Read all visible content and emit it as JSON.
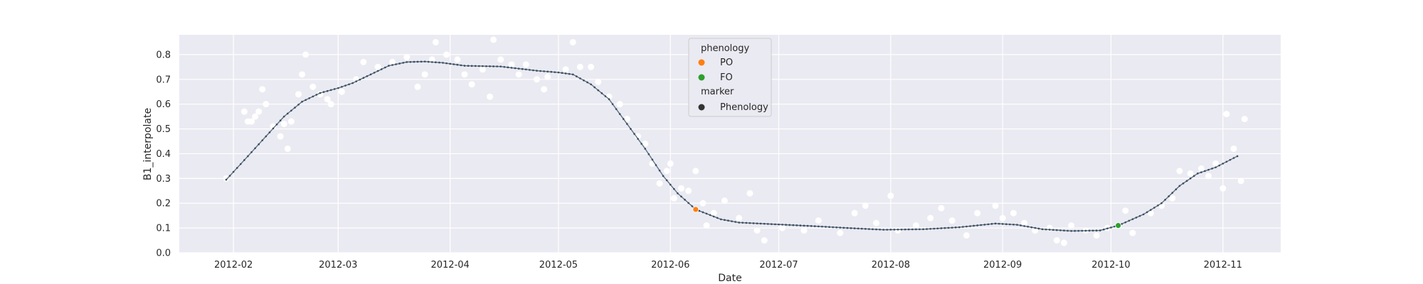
{
  "chart_data": {
    "type": "scatter",
    "title": "",
    "xlabel": "Date",
    "ylabel": "B1_interpolate",
    "xlim": [
      "2012-01-17",
      "2012-11-17"
    ],
    "ylim": [
      0,
      0.88
    ],
    "grid": true,
    "x_ticks": [
      "2012-02",
      "2012-03",
      "2012-04",
      "2012-05",
      "2012-06",
      "2012-07",
      "2012-08",
      "2012-09",
      "2012-10",
      "2012-11"
    ],
    "y_ticks": [
      "0.0",
      "0.1",
      "0.2",
      "0.3",
      "0.4",
      "0.5",
      "0.6",
      "0.7",
      "0.8"
    ],
    "legend": {
      "placement": "top-center",
      "sections": [
        {
          "title": "phenology",
          "items": [
            {
              "label": "PO",
              "color": "#ff7f0e"
            },
            {
              "label": "FO",
              "color": "#2ca02c"
            }
          ]
        },
        {
          "title": "marker",
          "items": [
            {
              "label": "Phenology",
              "color": "#333333"
            }
          ]
        }
      ]
    },
    "colors": {
      "background": "#eaeaf2",
      "grid": "#ffffff",
      "raw_points": "#ffffff",
      "curve": "#5a6f80",
      "PO": "#ff7f0e",
      "FO": "#2ca02c"
    },
    "curve": [
      [
        "2012-01-30",
        0.295
      ],
      [
        "2012-02-05",
        0.39
      ],
      [
        "2012-02-10",
        0.47
      ],
      [
        "2012-02-15",
        0.55
      ],
      [
        "2012-02-20",
        0.61
      ],
      [
        "2012-02-25",
        0.645
      ],
      [
        "2012-03-01",
        0.665
      ],
      [
        "2012-03-05",
        0.685
      ],
      [
        "2012-03-10",
        0.72
      ],
      [
        "2012-03-15",
        0.755
      ],
      [
        "2012-03-20",
        0.77
      ],
      [
        "2012-03-25",
        0.772
      ],
      [
        "2012-03-30",
        0.767
      ],
      [
        "2012-04-05",
        0.755
      ],
      [
        "2012-04-15",
        0.752
      ],
      [
        "2012-04-25",
        0.735
      ],
      [
        "2012-05-01",
        0.728
      ],
      [
        "2012-05-05",
        0.72
      ],
      [
        "2012-05-10",
        0.68
      ],
      [
        "2012-05-15",
        0.62
      ],
      [
        "2012-05-20",
        0.52
      ],
      [
        "2012-05-25",
        0.42
      ],
      [
        "2012-05-30",
        0.31
      ],
      [
        "2012-06-03",
        0.24
      ],
      [
        "2012-06-08",
        0.175
      ],
      [
        "2012-06-15",
        0.135
      ],
      [
        "2012-06-20",
        0.122
      ],
      [
        "2012-06-30",
        0.115
      ],
      [
        "2012-07-10",
        0.108
      ],
      [
        "2012-07-20",
        0.1
      ],
      [
        "2012-07-30",
        0.093
      ],
      [
        "2012-08-10",
        0.095
      ],
      [
        "2012-08-20",
        0.103
      ],
      [
        "2012-08-30",
        0.118
      ],
      [
        "2012-09-05",
        0.113
      ],
      [
        "2012-09-12",
        0.095
      ],
      [
        "2012-09-20",
        0.088
      ],
      [
        "2012-09-28",
        0.09
      ],
      [
        "2012-10-03",
        0.11
      ],
      [
        "2012-10-10",
        0.155
      ],
      [
        "2012-10-15",
        0.2
      ],
      [
        "2012-10-20",
        0.27
      ],
      [
        "2012-10-25",
        0.32
      ],
      [
        "2012-10-30",
        0.345
      ],
      [
        "2012-11-05",
        0.39
      ]
    ],
    "raw_points": [
      [
        "2012-01-30",
        0.3
      ],
      [
        "2012-02-04",
        0.57
      ],
      [
        "2012-02-05",
        0.53
      ],
      [
        "2012-02-06",
        0.53
      ],
      [
        "2012-02-07",
        0.55
      ],
      [
        "2012-02-08",
        0.57
      ],
      [
        "2012-02-09",
        0.66
      ],
      [
        "2012-02-10",
        0.6
      ],
      [
        "2012-02-12",
        0.51
      ],
      [
        "2012-02-14",
        0.47
      ],
      [
        "2012-02-15",
        0.52
      ],
      [
        "2012-02-16",
        0.42
      ],
      [
        "2012-02-17",
        0.53
      ],
      [
        "2012-02-19",
        0.64
      ],
      [
        "2012-02-20",
        0.72
      ],
      [
        "2012-02-21",
        0.8
      ],
      [
        "2012-02-23",
        0.67
      ],
      [
        "2012-02-25",
        0.64
      ],
      [
        "2012-02-27",
        0.62
      ],
      [
        "2012-02-28",
        0.6
      ],
      [
        "2012-03-02",
        0.65
      ],
      [
        "2012-03-06",
        0.7
      ],
      [
        "2012-03-08",
        0.77
      ],
      [
        "2012-03-12",
        0.75
      ],
      [
        "2012-03-16",
        0.77
      ],
      [
        "2012-03-20",
        0.79
      ],
      [
        "2012-03-23",
        0.67
      ],
      [
        "2012-03-25",
        0.72
      ],
      [
        "2012-03-27",
        0.78
      ],
      [
        "2012-03-28",
        0.85
      ],
      [
        "2012-03-31",
        0.8
      ],
      [
        "2012-04-03",
        0.78
      ],
      [
        "2012-04-05",
        0.72
      ],
      [
        "2012-04-07",
        0.68
      ],
      [
        "2012-04-10",
        0.74
      ],
      [
        "2012-04-12",
        0.63
      ],
      [
        "2012-04-13",
        0.86
      ],
      [
        "2012-04-15",
        0.78
      ],
      [
        "2012-04-18",
        0.76
      ],
      [
        "2012-04-20",
        0.72
      ],
      [
        "2012-04-22",
        0.76
      ],
      [
        "2012-04-25",
        0.7
      ],
      [
        "2012-04-27",
        0.66
      ],
      [
        "2012-04-28",
        0.71
      ],
      [
        "2012-05-03",
        0.74
      ],
      [
        "2012-05-05",
        0.85
      ],
      [
        "2012-05-07",
        0.75
      ],
      [
        "2012-05-10",
        0.75
      ],
      [
        "2012-05-12",
        0.69
      ],
      [
        "2012-05-15",
        0.63
      ],
      [
        "2012-05-18",
        0.6
      ],
      [
        "2012-05-20",
        0.54
      ],
      [
        "2012-05-23",
        0.47
      ],
      [
        "2012-05-25",
        0.44
      ],
      [
        "2012-05-27",
        0.36
      ],
      [
        "2012-05-29",
        0.28
      ],
      [
        "2012-05-31",
        0.33
      ],
      [
        "2012-06-01",
        0.36
      ],
      [
        "2012-06-02",
        0.22
      ],
      [
        "2012-06-04",
        0.26
      ],
      [
        "2012-06-06",
        0.25
      ],
      [
        "2012-06-08",
        0.33
      ],
      [
        "2012-06-10",
        0.2
      ],
      [
        "2012-06-11",
        0.11
      ],
      [
        "2012-06-13",
        0.16
      ],
      [
        "2012-06-16",
        0.21
      ],
      [
        "2012-06-20",
        0.14
      ],
      [
        "2012-06-23",
        0.24
      ],
      [
        "2012-06-25",
        0.09
      ],
      [
        "2012-06-27",
        0.05
      ],
      [
        "2012-07-02",
        0.1
      ],
      [
        "2012-07-08",
        0.09
      ],
      [
        "2012-07-12",
        0.13
      ],
      [
        "2012-07-18",
        0.08
      ],
      [
        "2012-07-22",
        0.16
      ],
      [
        "2012-07-25",
        0.19
      ],
      [
        "2012-07-28",
        0.12
      ],
      [
        "2012-08-01",
        0.23
      ],
      [
        "2012-08-03",
        0.09
      ],
      [
        "2012-08-08",
        0.11
      ],
      [
        "2012-08-12",
        0.14
      ],
      [
        "2012-08-15",
        0.18
      ],
      [
        "2012-08-18",
        0.13
      ],
      [
        "2012-08-22",
        0.07
      ],
      [
        "2012-08-25",
        0.16
      ],
      [
        "2012-08-30",
        0.19
      ],
      [
        "2012-09-01",
        0.14
      ],
      [
        "2012-09-04",
        0.16
      ],
      [
        "2012-09-07",
        0.12
      ],
      [
        "2012-09-10",
        0.09
      ],
      [
        "2012-09-14",
        0.1
      ],
      [
        "2012-09-16",
        0.05
      ],
      [
        "2012-09-18",
        0.04
      ],
      [
        "2012-09-20",
        0.11
      ],
      [
        "2012-09-24",
        0.09
      ],
      [
        "2012-09-27",
        0.07
      ],
      [
        "2012-09-30",
        0.1
      ],
      [
        "2012-10-05",
        0.17
      ],
      [
        "2012-10-07",
        0.08
      ],
      [
        "2012-10-12",
        0.16
      ],
      [
        "2012-10-15",
        0.19
      ],
      [
        "2012-10-18",
        0.22
      ],
      [
        "2012-10-20",
        0.33
      ],
      [
        "2012-10-23",
        0.32
      ],
      [
        "2012-10-26",
        0.34
      ],
      [
        "2012-10-28",
        0.31
      ],
      [
        "2012-10-30",
        0.36
      ],
      [
        "2012-11-01",
        0.26
      ],
      [
        "2012-11-02",
        0.56
      ],
      [
        "2012-11-04",
        0.42
      ],
      [
        "2012-11-06",
        0.29
      ],
      [
        "2012-11-07",
        0.54
      ]
    ],
    "phenology_points": [
      {
        "label": "PO",
        "x": "2012-06-08",
        "y": 0.175
      },
      {
        "label": "FO",
        "x": "2012-10-03",
        "y": 0.11
      }
    ]
  }
}
